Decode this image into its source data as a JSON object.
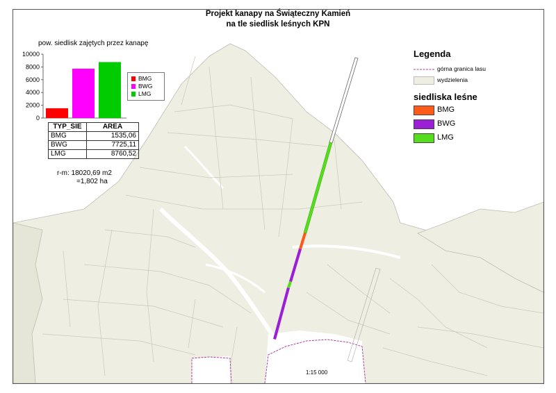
{
  "title": {
    "line1": "Projekt kanapy na Świąteczny Kamień",
    "line2": "na tle siedlisk leśnych KPN"
  },
  "chart_data": {
    "type": "bar",
    "title": "pow. siedlisk zajętych przez kanapę",
    "categories": [
      "BMG",
      "BWG",
      "LMG"
    ],
    "values": [
      1535.06,
      7725.11,
      8760.52
    ],
    "ylim": [
      0,
      10000
    ],
    "yticks": [
      "0",
      "2000",
      "4000",
      "6000",
      "8000",
      "10000"
    ],
    "colors": [
      "#ff0000",
      "#ff00ff",
      "#00cc00"
    ],
    "legend": [
      "BMG",
      "BWG",
      "LMG"
    ],
    "legend_placement": "right"
  },
  "table": {
    "headers": [
      "TYP_SIE",
      "AREA"
    ],
    "rows": [
      [
        "BMG",
        "1535,06"
      ],
      [
        "BWG",
        "7725,11"
      ],
      [
        "LMG",
        "8760,52"
      ]
    ]
  },
  "summary": {
    "line1": "r-m: 18020,69 m2",
    "line2": "=1,802 ha"
  },
  "legend": {
    "title": "Legenda",
    "forest_boundary": "górna granica lasu",
    "subdivisions": "wydzielenia",
    "habitats_title": "siedliska leśne",
    "habitats": [
      {
        "label": "BMG",
        "color": "#ff5a1a"
      },
      {
        "label": "BWG",
        "color": "#9b1fd6"
      },
      {
        "label": "LMG",
        "color": "#55dd1e"
      }
    ]
  },
  "map": {
    "land_color": "#eeeee2",
    "boundary_color": "#b03c9a",
    "scale": "1:15 000"
  }
}
